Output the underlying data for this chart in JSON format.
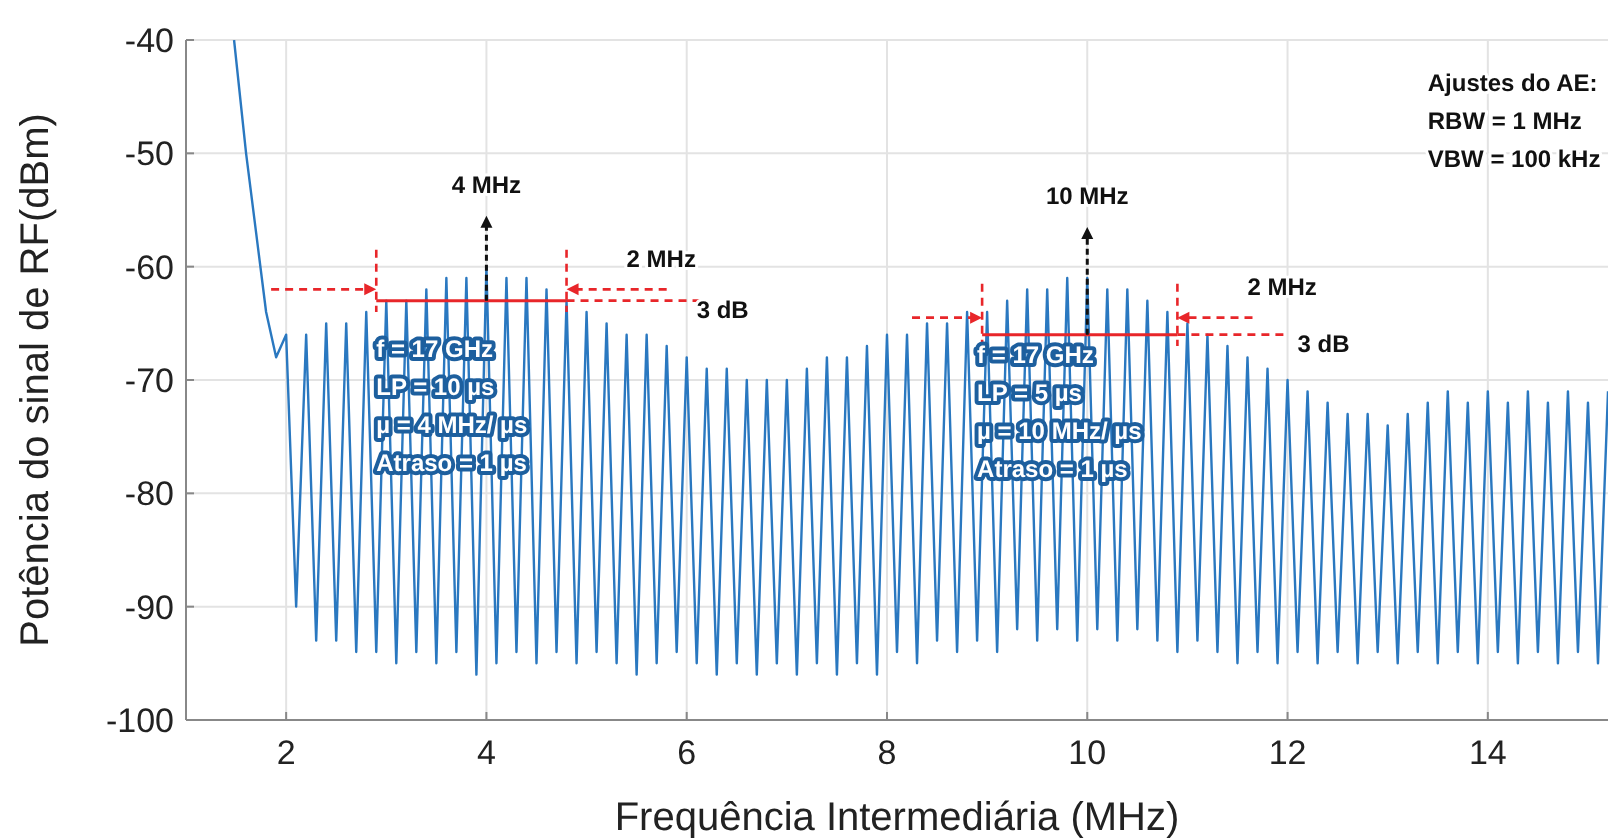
{
  "chart_data": {
    "type": "line",
    "xlabel": "Frequência Intermediária (MHz)",
    "ylabel": "Potência do sinal de RF(dBm)",
    "xlim": [
      1,
      15.2
    ],
    "ylim": [
      -100,
      -40
    ],
    "xticks": [
      2,
      4,
      6,
      8,
      10,
      12,
      14
    ],
    "yticks": [
      -100,
      -90,
      -80,
      -70,
      -60,
      -50,
      -40
    ],
    "grid": true,
    "marker": "none",
    "line_style": "solid",
    "series": [
      {
        "color": "#2a78c0",
        "x": [
          1.48,
          1.6,
          1.7,
          1.8,
          1.9,
          2.0,
          2.1,
          2.2,
          2.3,
          2.4,
          2.5,
          2.6,
          2.7,
          2.8,
          2.9,
          3.0,
          3.1,
          3.2,
          3.3,
          3.4,
          3.5,
          3.6,
          3.7,
          3.8,
          3.9,
          4.0,
          4.1,
          4.2,
          4.3,
          4.4,
          4.5,
          4.6,
          4.7,
          4.8,
          4.9,
          5.0,
          5.1,
          5.2,
          5.3,
          5.4,
          5.5,
          5.6,
          5.7,
          5.8,
          5.9,
          6.0,
          6.1,
          6.2,
          6.3,
          6.4,
          6.5,
          6.6,
          6.7,
          6.8,
          6.9,
          7.0,
          7.1,
          7.2,
          7.3,
          7.4,
          7.5,
          7.6,
          7.7,
          7.8,
          7.9,
          8.0,
          8.1,
          8.2,
          8.3,
          8.4,
          8.5,
          8.6,
          8.7,
          8.8,
          8.9,
          9.0,
          9.1,
          9.2,
          9.3,
          9.4,
          9.5,
          9.6,
          9.7,
          9.8,
          9.9,
          10.0,
          10.1,
          10.2,
          10.3,
          10.4,
          10.5,
          10.6,
          10.7,
          10.8,
          10.9,
          11.0,
          11.1,
          11.2,
          11.3,
          11.4,
          11.5,
          11.6,
          11.7,
          11.8,
          11.9,
          12.0,
          12.1,
          12.2,
          12.3,
          12.4,
          12.5,
          12.6,
          12.7,
          12.8,
          12.9,
          13.0,
          13.1,
          13.2,
          13.3,
          13.4,
          13.5,
          13.6,
          13.7,
          13.8,
          13.9,
          14.0,
          14.1,
          14.2,
          14.3,
          14.4,
          14.5,
          14.6,
          14.7,
          14.8,
          14.9,
          15.0,
          15.1,
          15.2
        ],
        "values": [
          -40,
          -50,
          -57,
          -64,
          -68,
          -66,
          -90,
          -66,
          -93,
          -65,
          -93,
          -65,
          -94,
          -64,
          -94,
          -63,
          -95,
          -63,
          -94,
          -62,
          -95,
          -61,
          -94,
          -61,
          -96,
          -60,
          -95,
          -61,
          -94,
          -61,
          -95,
          -62,
          -94,
          -63,
          -95,
          -64,
          -94,
          -65,
          -95,
          -66,
          -96,
          -66,
          -95,
          -67,
          -94,
          -68,
          -95,
          -69,
          -96,
          -69,
          -95,
          -70,
          -96,
          -70,
          -95,
          -70,
          -96,
          -69,
          -95,
          -68,
          -96,
          -68,
          -95,
          -67,
          -96,
          -66,
          -94,
          -66,
          -95,
          -65,
          -93,
          -65,
          -94,
          -64,
          -93,
          -64,
          -94,
          -63,
          -92,
          -62,
          -93,
          -62,
          -92,
          -61,
          -93,
          -61,
          -92,
          -62,
          -93,
          -62,
          -92,
          -63,
          -93,
          -64,
          -94,
          -65,
          -93,
          -66,
          -94,
          -67,
          -95,
          -68,
          -94,
          -69,
          -95,
          -70,
          -94,
          -71,
          -95,
          -72,
          -94,
          -73,
          -95,
          -73,
          -94,
          -74,
          -95,
          -73,
          -94,
          -72,
          -95,
          -71,
          -94,
          -72,
          -95,
          -71,
          -94,
          -72,
          -95,
          -71,
          -94,
          -72,
          -95,
          -71,
          -94,
          -72,
          -95,
          -71
        ]
      }
    ],
    "annotations": [
      {
        "text": "4 MHz",
        "x": 4,
        "y": -63
      },
      {
        "text": "2 MHz",
        "x": 4.8,
        "y": -63
      },
      "3 dB",
      "f = 17 GHz\nLP = 10 µs\nµ = 4 MHz/ µs\nAtraso = 1 µs",
      {
        "text": "10 MHz",
        "x": 10,
        "y": -66
      },
      {
        "text": "2 MHz",
        "x": 10.9,
        "y": -64.5
      },
      "3 dB",
      "f = 17 GHz\nLP = 5 µs\nµ = 10 MHz/ µs\nAtraso = 1 µs",
      "Ajustes do AE:\nRBW = 1 MHz\nVBW = 100 kHz"
    ]
  }
}
